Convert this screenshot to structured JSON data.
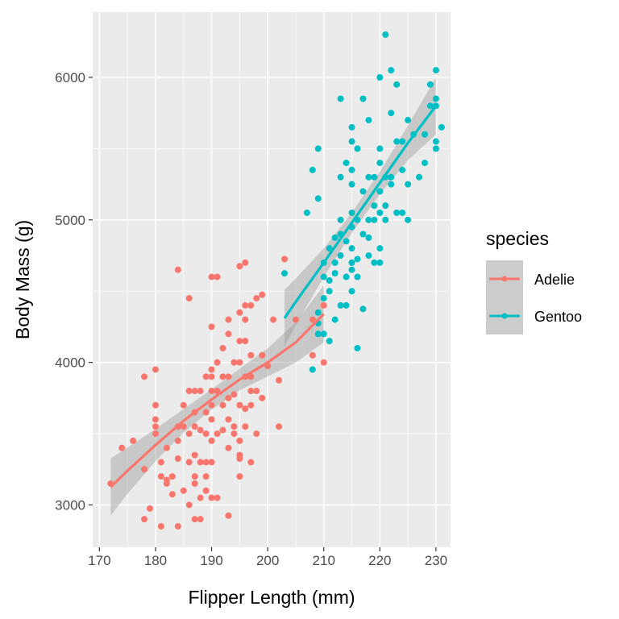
{
  "chart_data": {
    "type": "scatter",
    "xlabel": "Flipper Length (mm)",
    "ylabel": "Body Mass (g)",
    "xlim": [
      168.8,
      232.6
    ],
    "ylim": [
      2703,
      6458
    ],
    "x_ticks": [
      170,
      180,
      190,
      200,
      210,
      220,
      230
    ],
    "y_ticks": [
      3000,
      4000,
      5000,
      6000
    ],
    "grid": true,
    "legend": {
      "title": "species",
      "position": "right"
    },
    "series": [
      {
        "name": "Adelie",
        "color": "#F8766D",
        "points": [
          [
            172,
            3150
          ],
          [
            174,
            3400
          ],
          [
            176,
            3450
          ],
          [
            178,
            3250
          ],
          [
            178,
            3900
          ],
          [
            178,
            2900
          ],
          [
            179,
            2975
          ],
          [
            180,
            3950
          ],
          [
            180,
            3700
          ],
          [
            180,
            3600
          ],
          [
            180,
            3550
          ],
          [
            180,
            3500
          ],
          [
            181,
            3300
          ],
          [
            181,
            3200
          ],
          [
            181,
            2850
          ],
          [
            182,
            3150
          ],
          [
            182,
            3400
          ],
          [
            182,
            3175
          ],
          [
            183,
            3200
          ],
          [
            183,
            3075
          ],
          [
            184,
            3550
          ],
          [
            184,
            3450
          ],
          [
            184,
            3325
          ],
          [
            184,
            2850
          ],
          [
            184,
            4650
          ],
          [
            185,
            3700
          ],
          [
            185,
            3550
          ],
          [
            185,
            3100
          ],
          [
            186,
            4450
          ],
          [
            186,
            3800
          ],
          [
            186,
            3500
          ],
          [
            186,
            3300
          ],
          [
            186,
            3000
          ],
          [
            187,
            3800
          ],
          [
            187,
            3650
          ],
          [
            187,
            3550
          ],
          [
            187,
            3350
          ],
          [
            187,
            3200
          ],
          [
            187,
            3150
          ],
          [
            187,
            2900
          ],
          [
            188,
            3800
          ],
          [
            188,
            3525
          ],
          [
            188,
            3300
          ],
          [
            188,
            3050
          ],
          [
            188,
            2900
          ],
          [
            189,
            3900
          ],
          [
            189,
            3650
          ],
          [
            189,
            3500
          ],
          [
            189,
            3300
          ],
          [
            189,
            3200
          ],
          [
            189,
            3100
          ],
          [
            190,
            4600
          ],
          [
            190,
            4250
          ],
          [
            190,
            3950
          ],
          [
            190,
            3900
          ],
          [
            190,
            3800
          ],
          [
            190,
            3700
          ],
          [
            190,
            3600
          ],
          [
            190,
            3450
          ],
          [
            190,
            3300
          ],
          [
            190,
            3050
          ],
          [
            191,
            4600
          ],
          [
            191,
            4000
          ],
          [
            191,
            3800
          ],
          [
            191,
            3500
          ],
          [
            191,
            3050
          ],
          [
            192,
            4100
          ],
          [
            192,
            3900
          ],
          [
            192,
            3700
          ],
          [
            192,
            3525
          ],
          [
            193,
            4300
          ],
          [
            193,
            4200
          ],
          [
            193,
            3900
          ],
          [
            193,
            3750
          ],
          [
            193,
            3600
          ],
          [
            193,
            3400
          ],
          [
            193,
            2925
          ],
          [
            194,
            4000
          ],
          [
            194,
            3775
          ],
          [
            194,
            3550
          ],
          [
            194,
            3500
          ],
          [
            195,
            4675
          ],
          [
            195,
            4350
          ],
          [
            195,
            4150
          ],
          [
            195,
            4000
          ],
          [
            195,
            3700
          ],
          [
            195,
            3450
          ],
          [
            195,
            3350
          ],
          [
            195,
            3325
          ],
          [
            195,
            3200
          ],
          [
            196,
            4700
          ],
          [
            196,
            4400
          ],
          [
            196,
            4300
          ],
          [
            196,
            4150
          ],
          [
            196,
            3900
          ],
          [
            196,
            3675
          ],
          [
            196,
            3550
          ],
          [
            197,
            4400
          ],
          [
            197,
            4050
          ],
          [
            197,
            3900
          ],
          [
            197,
            3800
          ],
          [
            197,
            3700
          ],
          [
            197,
            3300
          ],
          [
            198,
            4450
          ],
          [
            198,
            3800
          ],
          [
            198,
            3500
          ],
          [
            199,
            4475
          ],
          [
            199,
            4050
          ],
          [
            199,
            3750
          ],
          [
            200,
            3975
          ],
          [
            201,
            4300
          ],
          [
            202,
            3875
          ],
          [
            202,
            3550
          ],
          [
            203,
            4725
          ],
          [
            205,
            4300
          ],
          [
            208,
            4300
          ],
          [
            208,
            4050
          ],
          [
            210,
            4400
          ],
          [
            210,
            4000
          ]
        ],
        "fit": [
          [
            172,
            3125
          ],
          [
            175,
            3240
          ],
          [
            180,
            3420
          ],
          [
            185,
            3590
          ],
          [
            190,
            3740
          ],
          [
            195,
            3880
          ],
          [
            200,
            4000
          ],
          [
            205,
            4140
          ],
          [
            210,
            4340
          ]
        ]
      },
      {
        "name": "Gentoo",
        "color": "#00BFC4",
        "points": [
          [
            203,
            4625
          ],
          [
            207,
            5050
          ],
          [
            208,
            5350
          ],
          [
            208,
            3950
          ],
          [
            209,
            5500
          ],
          [
            209,
            5150
          ],
          [
            209,
            4275
          ],
          [
            209,
            4200
          ],
          [
            209,
            4350
          ],
          [
            210,
            4700
          ],
          [
            210,
            4600
          ],
          [
            210,
            4450
          ],
          [
            210,
            4200
          ],
          [
            211,
            4800
          ],
          [
            211,
            4500
          ],
          [
            211,
            4575
          ],
          [
            211,
            4150
          ],
          [
            212,
            4875
          ],
          [
            212,
            4700
          ],
          [
            212,
            4625
          ],
          [
            212,
            4300
          ],
          [
            213,
            5850
          ],
          [
            213,
            5300
          ],
          [
            213,
            5000
          ],
          [
            213,
            4900
          ],
          [
            213,
            4750
          ],
          [
            213,
            4400
          ],
          [
            214,
            5400
          ],
          [
            214,
            4850
          ],
          [
            214,
            4400
          ],
          [
            214,
            4600
          ],
          [
            215,
            5650
          ],
          [
            215,
            5550
          ],
          [
            215,
            5350
          ],
          [
            215,
            5250
          ],
          [
            215,
            5050
          ],
          [
            215,
            4950
          ],
          [
            215,
            4800
          ],
          [
            215,
            4700
          ],
          [
            215,
            4650
          ],
          [
            215,
            4500
          ],
          [
            216,
            5500
          ],
          [
            216,
            5000
          ],
          [
            216,
            4725
          ],
          [
            216,
            4600
          ],
          [
            216,
            4100
          ],
          [
            217,
            5850
          ],
          [
            217,
            5200
          ],
          [
            217,
            4900
          ],
          [
            217,
            4375
          ],
          [
            218,
            5700
          ],
          [
            218,
            5300
          ],
          [
            218,
            5000
          ],
          [
            218,
            4875
          ],
          [
            218,
            4750
          ],
          [
            219,
            5300
          ],
          [
            219,
            5100
          ],
          [
            219,
            5000
          ],
          [
            219,
            4700
          ],
          [
            220,
            6000
          ],
          [
            220,
            5500
          ],
          [
            220,
            5400
          ],
          [
            220,
            5200
          ],
          [
            220,
            5050
          ],
          [
            220,
            4800
          ],
          [
            220,
            4700
          ],
          [
            221,
            6300
          ],
          [
            221,
            5300
          ],
          [
            221,
            5100
          ],
          [
            221,
            5000
          ],
          [
            222,
            6050
          ],
          [
            222,
            5750
          ],
          [
            222,
            5300
          ],
          [
            222,
            5250
          ],
          [
            223,
            5950
          ],
          [
            223,
            5550
          ],
          [
            223,
            5050
          ],
          [
            224,
            5350
          ],
          [
            224,
            5050
          ],
          [
            224,
            5550
          ],
          [
            225,
            5700
          ],
          [
            225,
            5250
          ],
          [
            225,
            5000
          ],
          [
            226,
            5600
          ],
          [
            227,
            5300
          ],
          [
            228,
            5400
          ],
          [
            228,
            5600
          ],
          [
            229,
            5950
          ],
          [
            229,
            5800
          ],
          [
            230,
            6050
          ],
          [
            230,
            5850
          ],
          [
            230,
            5800
          ],
          [
            230,
            5550
          ],
          [
            230,
            5500
          ],
          [
            231,
            5650
          ]
        ],
        "fit": [
          [
            203,
            4310
          ],
          [
            205,
            4425
          ],
          [
            210,
            4700
          ],
          [
            215,
            4980
          ],
          [
            220,
            5260
          ],
          [
            225,
            5540
          ],
          [
            230,
            5800
          ]
        ]
      }
    ]
  }
}
